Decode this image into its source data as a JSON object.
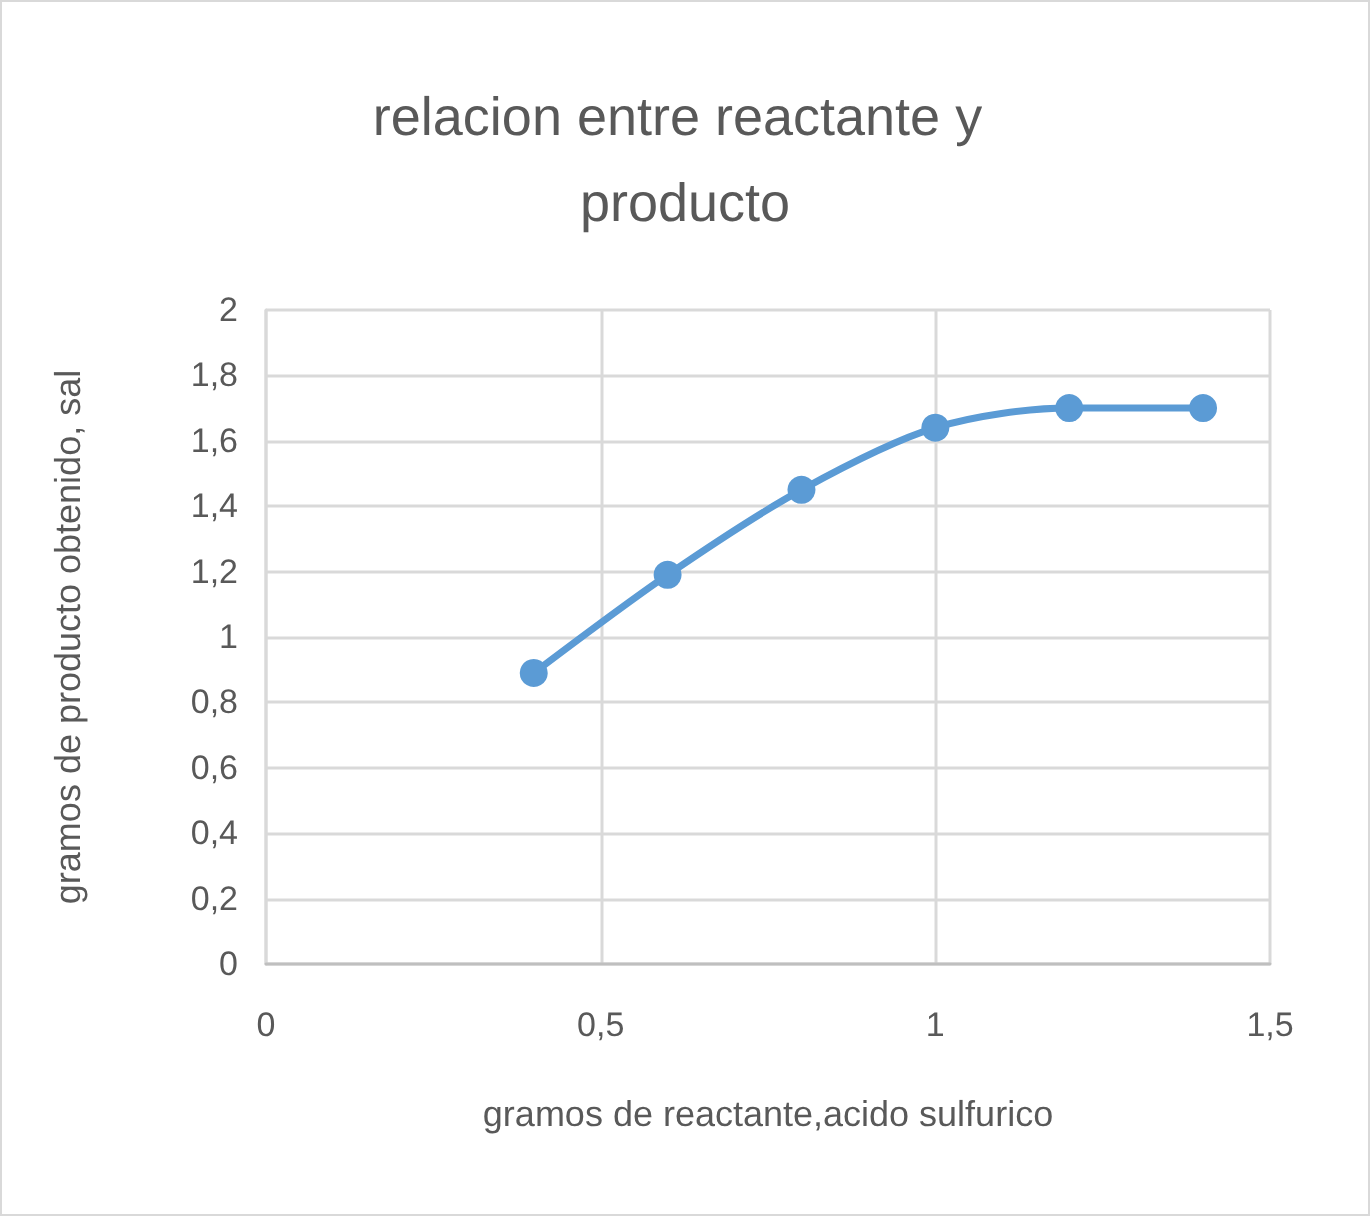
{
  "chart_data": {
    "type": "line",
    "title": "relacion entre reactante y producto",
    "xlabel": "gramos de reactante,acido sulfurico",
    "ylabel": "gramos de producto obtenido, sal",
    "x": [
      0.4,
      0.6,
      0.8,
      1,
      1.2,
      1.4
    ],
    "series": [
      {
        "color": "#5b9bd5",
        "values": [
          0.89,
          1.19,
          1.45,
          1.64,
          1.7,
          1.7
        ]
      }
    ],
    "xlim": [
      0,
      1.5
    ],
    "xticks": [
      0,
      {
        "value": 0.5,
        "label": "0,5"
      },
      1,
      {
        "value": 1.5,
        "label": "1,5"
      }
    ],
    "ylim": [
      0,
      2
    ],
    "yticks": [
      0,
      {
        "value": 0.2,
        "label": "0,2"
      },
      {
        "value": 0.4,
        "label": "0,4"
      },
      {
        "value": 0.6,
        "label": "0,6"
      },
      {
        "value": 0.8,
        "label": "0,8"
      },
      1,
      {
        "value": 1.2,
        "label": "1,2"
      },
      {
        "value": 1.4,
        "label": "1,4"
      },
      {
        "value": 1.6,
        "label": "1,6"
      },
      {
        "value": 1.8,
        "label": "1,8"
      },
      2
    ],
    "grid": true,
    "marker": "circle",
    "line_style": "solid"
  }
}
